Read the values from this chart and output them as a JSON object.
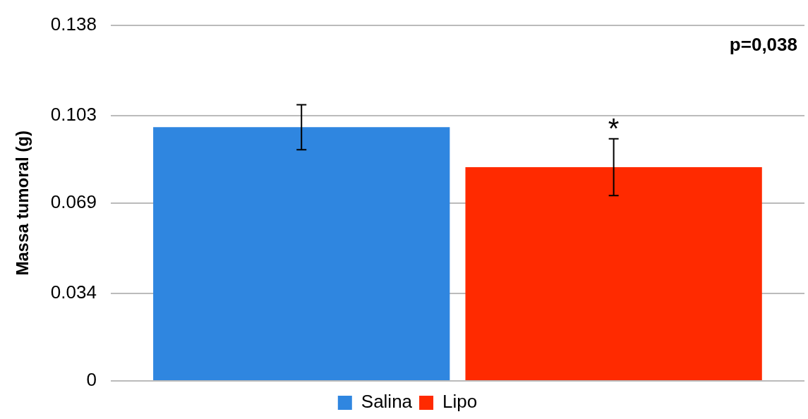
{
  "chart_data": {
    "type": "bar",
    "ylabel": "Massa tumoral (g)",
    "categories": [
      null
    ],
    "series": [
      {
        "name": "Salina",
        "color": "#2f86e0",
        "values": [
          0.0984
        ],
        "errors": [
          0.0087
        ]
      },
      {
        "name": "Lipo",
        "color": "#ff2a00",
        "values": [
          0.0829
        ],
        "errors": [
          0.011
        ],
        "value_labels": [
          "*"
        ]
      }
    ],
    "ylim": [
      0,
      0.138
    ],
    "yticks": [
      0,
      0.034,
      0.069,
      0.103,
      0.138
    ],
    "annotations": [
      "p=0,038"
    ],
    "grid": "y",
    "legend": "bottom"
  }
}
